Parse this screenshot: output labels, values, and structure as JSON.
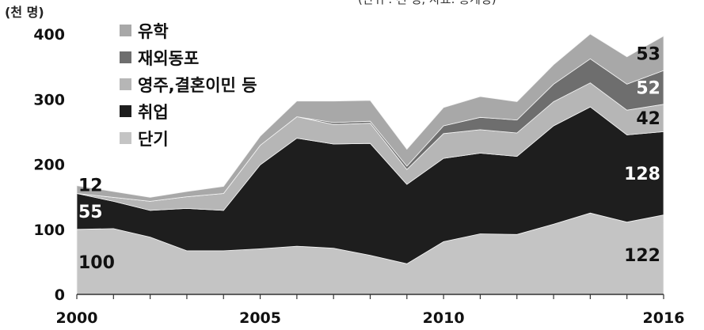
{
  "caption": "(단위 : 천 명, 자료: 통계청)",
  "chart_data": {
    "type": "area",
    "stacked": true,
    "unit_label": "(천 명)",
    "x": [
      2000,
      2001,
      2002,
      2003,
      2004,
      2005,
      2006,
      2007,
      2008,
      2009,
      2010,
      2011,
      2012,
      2013,
      2014,
      2015,
      2016
    ],
    "x_tick_labels": [
      "2000",
      "2005",
      "2010",
      "2016"
    ],
    "y_tick_labels": [
      "0",
      "100",
      "200",
      "300",
      "400"
    ],
    "ylim": [
      0,
      400
    ],
    "legend_position": "top-left",
    "series": [
      {
        "name": "단기",
        "color": "#c4c4c4",
        "values": [
          100,
          101,
          88,
          67,
          67,
          70,
          74,
          71,
          60,
          47,
          81,
          93,
          92,
          108,
          125,
          111,
          122
        ]
      },
      {
        "name": "취업",
        "color": "#1e1e1e",
        "values": [
          55,
          42,
          41,
          65,
          62,
          129,
          166,
          160,
          172,
          122,
          128,
          124,
          120,
          151,
          163,
          134,
          128
        ]
      },
      {
        "name": "영주,결혼이민 등",
        "color": "#b6b6b6",
        "values": [
          0,
          6,
          14,
          18,
          26,
          30,
          33,
          30,
          31,
          23,
          38,
          36,
          36,
          37,
          37,
          38,
          42
        ]
      },
      {
        "name": "재외동포",
        "color": "#6e6e6e",
        "values": [
          0,
          0,
          0,
          0,
          0,
          0,
          0,
          3,
          3,
          5,
          12,
          19,
          20,
          27,
          37,
          40,
          52
        ]
      },
      {
        "name": "유학",
        "color": "#a8a8a8",
        "values": [
          12,
          9,
          6,
          8,
          11,
          14,
          24,
          33,
          32,
          26,
          28,
          32,
          28,
          30,
          38,
          42,
          53
        ]
      }
    ],
    "annotations": [
      {
        "text": "100",
        "series": "단기",
        "x": 2000,
        "color": "#111111"
      },
      {
        "text": "55",
        "series": "취업",
        "x": 2000,
        "color": "#ffffff"
      },
      {
        "text": "12",
        "series": "유학",
        "x": 2000,
        "color": "#111111"
      },
      {
        "text": "122",
        "series": "단기",
        "x": 2016,
        "color": "#111111"
      },
      {
        "text": "128",
        "series": "취업",
        "x": 2016,
        "color": "#ffffff"
      },
      {
        "text": "42",
        "series": "영주,결혼이민 등",
        "x": 2016,
        "color": "#111111"
      },
      {
        "text": "52",
        "series": "재외동포",
        "x": 2016,
        "color": "#ffffff"
      },
      {
        "text": "53",
        "series": "유학",
        "x": 2016,
        "color": "#111111"
      }
    ]
  }
}
